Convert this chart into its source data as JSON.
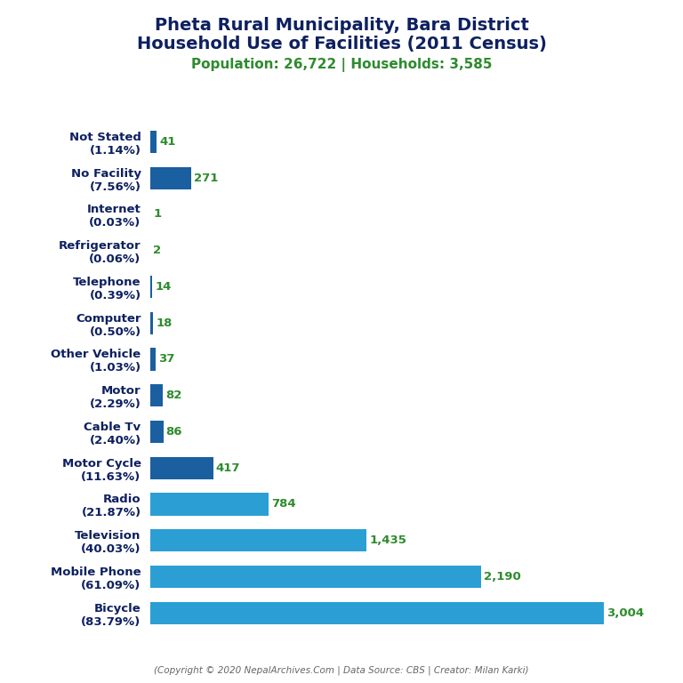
{
  "title_line1": "Pheta Rural Municipality, Bara District",
  "title_line2": "Household Use of Facilities (2011 Census)",
  "subtitle": "Population: 26,722 | Households: 3,585",
  "footer": "(Copyright © 2020 NepalArchives.Com | Data Source: CBS | Creator: Milan Karki)",
  "categories": [
    "Not Stated\n(1.14%)",
    "No Facility\n(7.56%)",
    "Internet\n(0.03%)",
    "Refrigerator\n(0.06%)",
    "Telephone\n(0.39%)",
    "Computer\n(0.50%)",
    "Other Vehicle\n(1.03%)",
    "Motor\n(2.29%)",
    "Cable Tv\n(2.40%)",
    "Motor Cycle\n(11.63%)",
    "Radio\n(21.87%)",
    "Television\n(40.03%)",
    "Mobile Phone\n(61.09%)",
    "Bicycle\n(83.79%)"
  ],
  "values": [
    41,
    271,
    1,
    2,
    14,
    18,
    37,
    82,
    86,
    417,
    784,
    1435,
    2190,
    3004
  ],
  "value_labels": [
    "41",
    "271",
    "1",
    "2",
    "14",
    "18",
    "37",
    "82",
    "86",
    "417",
    "784",
    "1,435",
    "2,190",
    "3,004"
  ],
  "bar_color_light": "#2B9FD4",
  "bar_color_dark": "#1A5FA0",
  "title_color": "#0D2060",
  "subtitle_color": "#2E8B2E",
  "value_color": "#2E8B2E",
  "footer_color": "#666666",
  "bg_color": "#FFFFFF",
  "title_fontsize": 14,
  "subtitle_fontsize": 11,
  "label_fontsize": 9.5,
  "value_fontsize": 9.5,
  "footer_fontsize": 7.5
}
